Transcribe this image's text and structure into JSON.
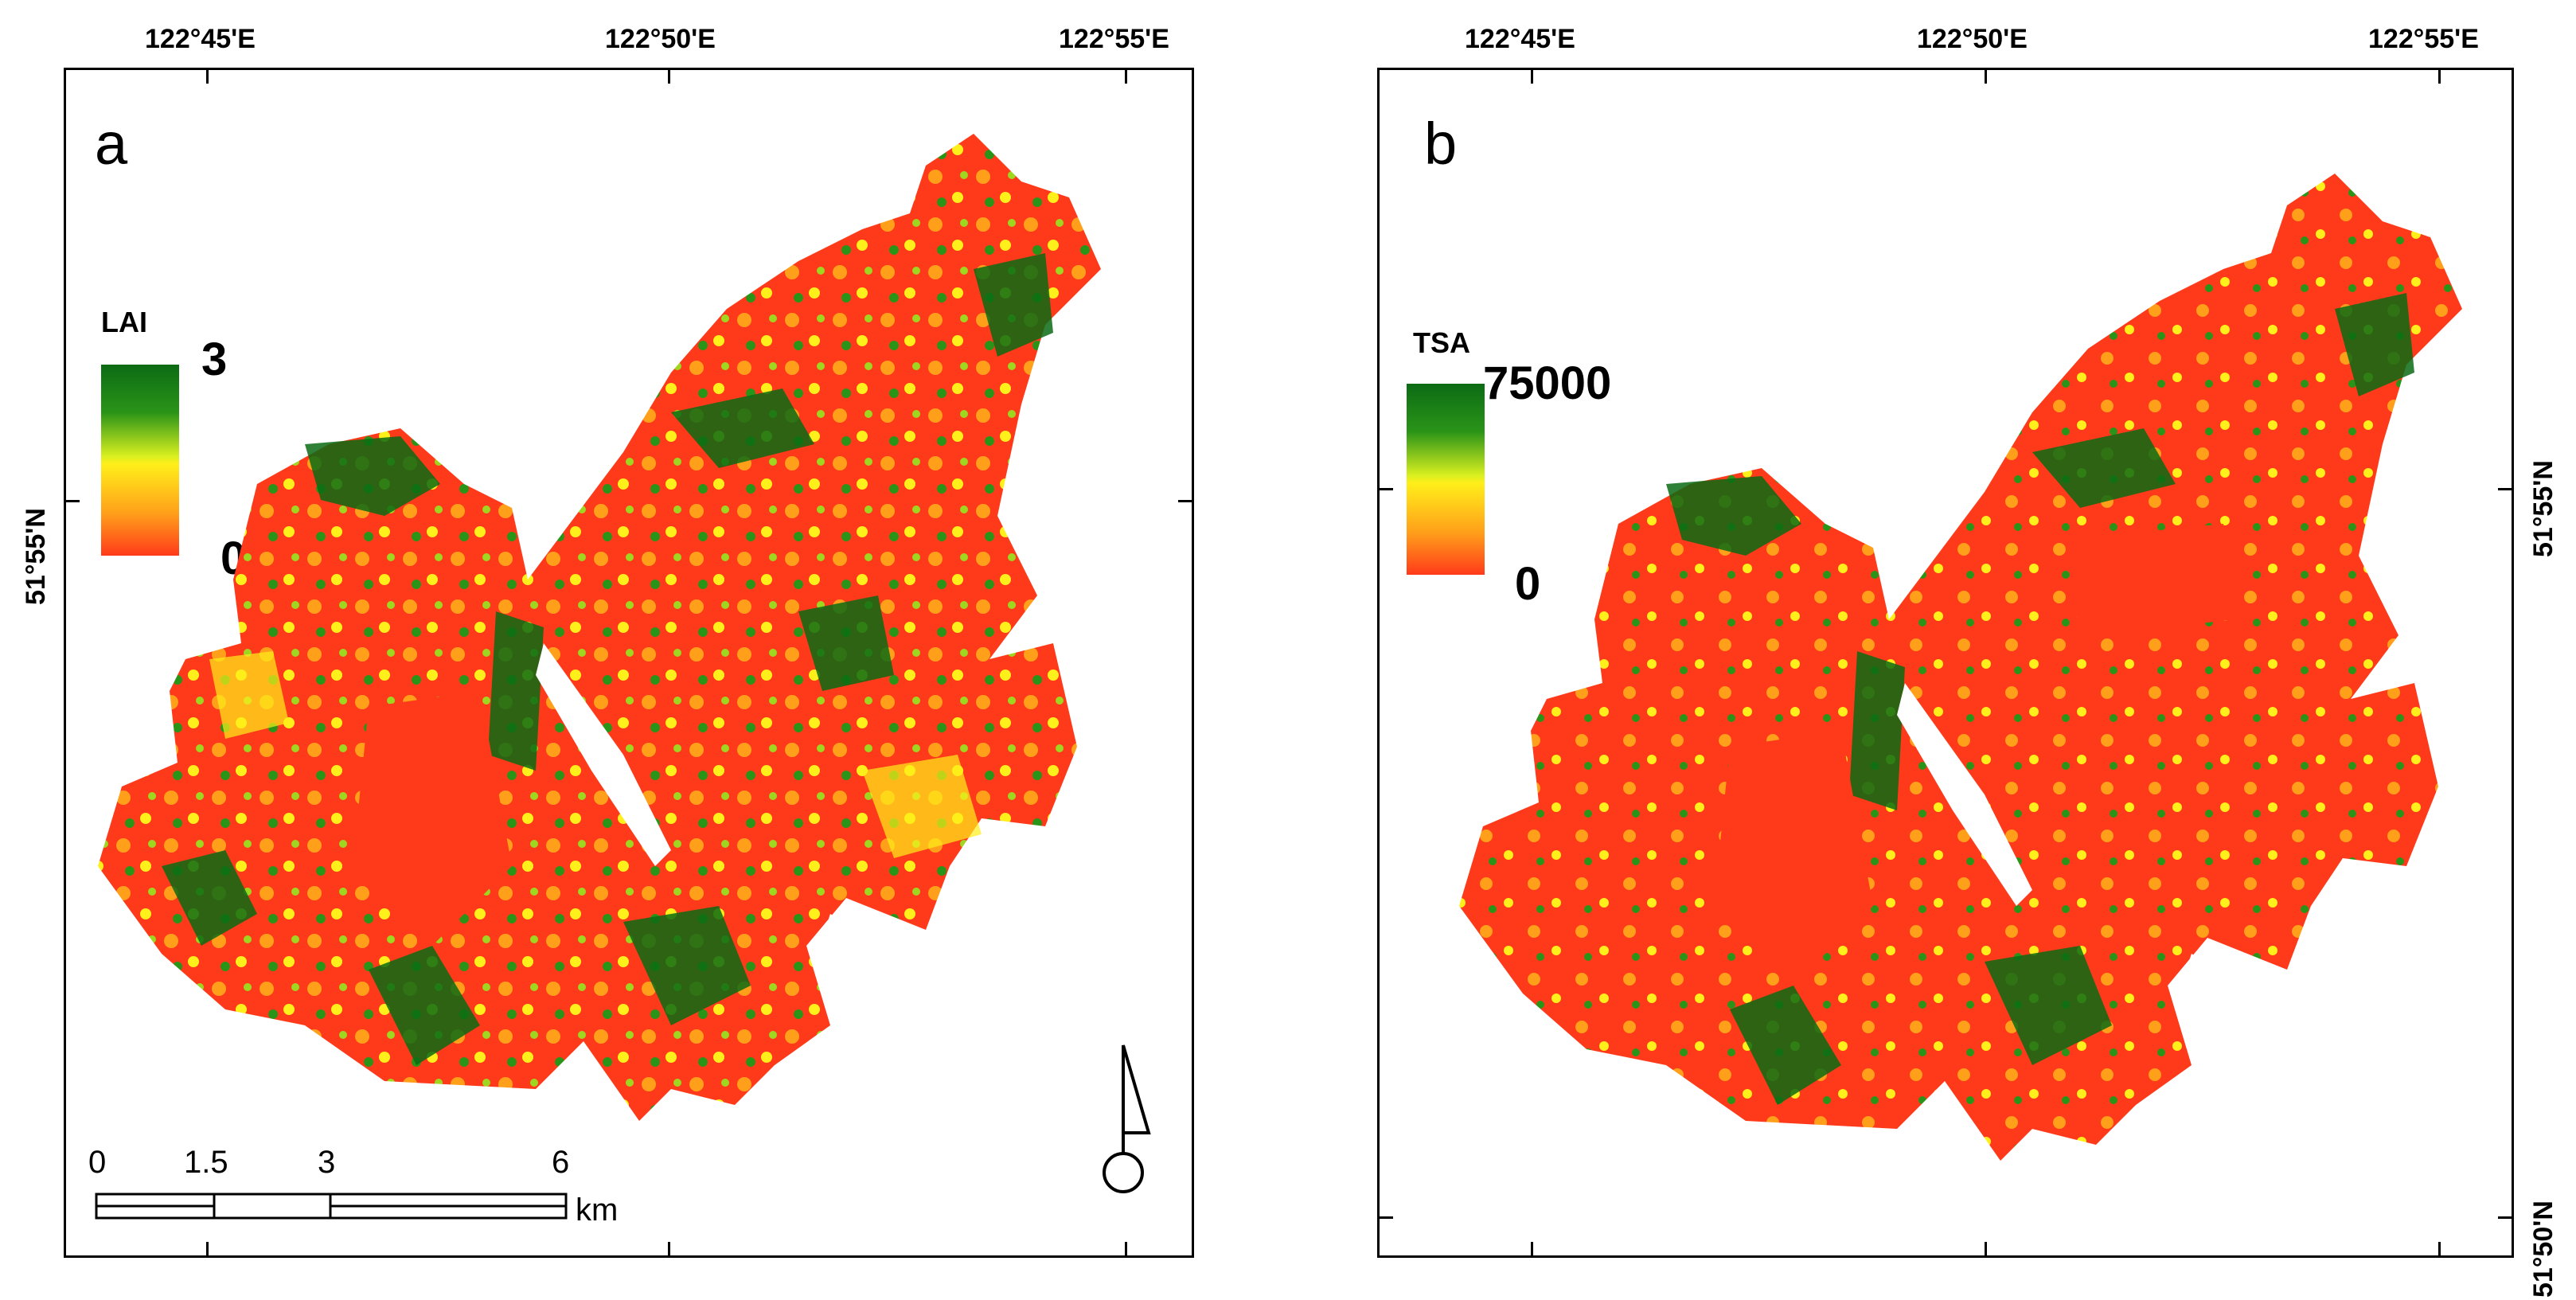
{
  "panel_a": {
    "letter": "a",
    "legend": {
      "title": "LAI",
      "max": "3",
      "min": "0"
    },
    "lon_labels": [
      "122°45'E",
      "122°50'E",
      "122°55'E"
    ],
    "lat_labels": [
      "51°55'N"
    ],
    "scale_bar": {
      "labels": [
        "0",
        "1.5",
        "3",
        "6"
      ],
      "unit": "km"
    },
    "north_arrow": "north-arrow-icon"
  },
  "panel_b": {
    "letter": "b",
    "legend": {
      "title": "TSA",
      "max": "75000",
      "min": "0"
    },
    "lon_labels": [
      "122°45'E",
      "122°50'E",
      "122°55'E"
    ],
    "lat_labels": [
      "51°55'N",
      "51°50'N"
    ]
  },
  "colors": {
    "high": "#0b6b14",
    "mid": "#ffef1a",
    "low": "#ff3a1a",
    "frame": "#000000"
  }
}
